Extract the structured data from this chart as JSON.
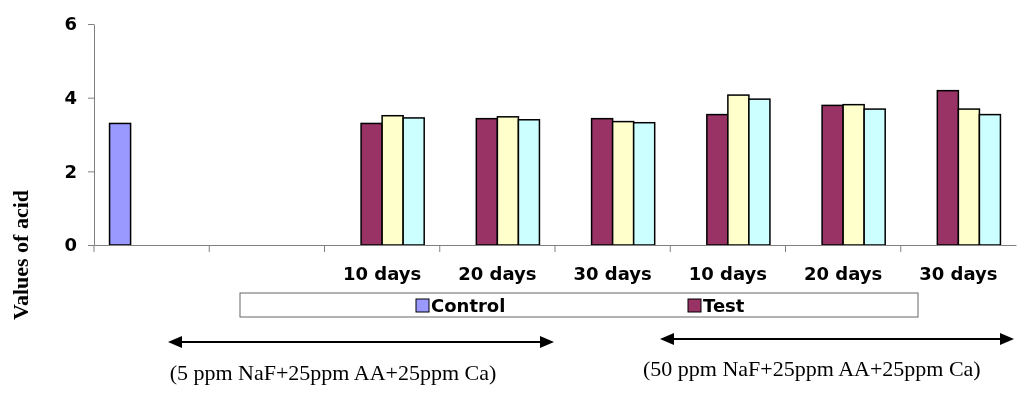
{
  "chart_data": {
    "type": "bar",
    "ylabel": "Values of acid",
    "categories": [
      null,
      null,
      "10 days",
      "20 days",
      "30 days",
      "10 days",
      "20 days",
      "30 days"
    ],
    "series": [
      {
        "name": "Control",
        "color": "#9999ff",
        "values": [
          3.3,
          null,
          null,
          null,
          null,
          null,
          null,
          null
        ]
      },
      {
        "name": "Test",
        "color": "#993366",
        "values": [
          null,
          null,
          3.3,
          3.43,
          3.43,
          3.54,
          3.79,
          4.19
        ]
      },
      {
        "color": "#ffffcc",
        "values": [
          null,
          null,
          3.51,
          3.48,
          3.35,
          4.07,
          3.81,
          3.69
        ]
      },
      {
        "color": "#ccffff",
        "values": [
          null,
          null,
          3.45,
          3.4,
          3.32,
          3.96,
          3.69,
          3.54
        ]
      }
    ],
    "ylim": [
      0,
      6
    ],
    "yticks": [
      0,
      2,
      4,
      6
    ],
    "legend": "bottom",
    "annotations": [
      "(5 ppm NaF+25ppm AA+25ppm Ca)",
      "(50 ppm NaF+25ppm AA+25ppm Ca)"
    ]
  }
}
